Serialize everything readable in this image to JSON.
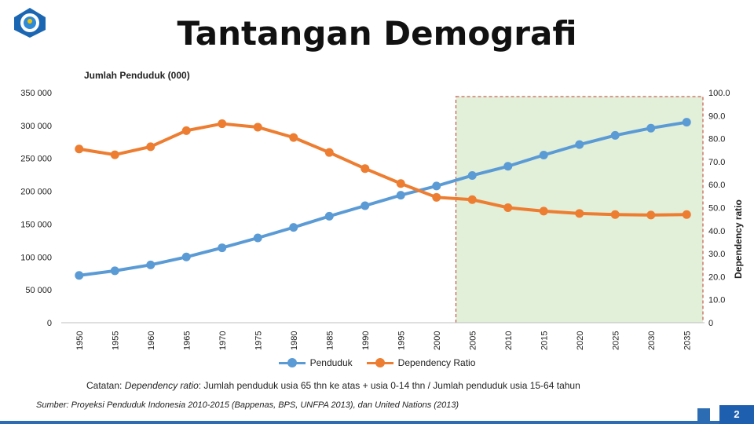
{
  "slide": {
    "title": "Tantangan Demografi",
    "subtitle": "Jumlah Penduduk (000)",
    "note_prefix": "Catatan: ",
    "note_term": "Dependency ratio",
    "note_text": ": Jumlah penduduk usia 65 thn ke atas + usia 0-14 thn / Jumlah penduduk usia 15-64 tahun",
    "source": "Sumber: Proyeksi Penduduk Indonesia 2010-2015 (Bappenas, BPS, UNFPA 2013), dan United Nations (2013)",
    "page_number": "2"
  },
  "colors": {
    "penduduk": "#5b9bd5",
    "dependency": "#ed7d31",
    "projection_fill": "#e2efd9",
    "projection_border": "#c0392b",
    "accent": "#2b6cb3"
  },
  "chart_data": {
    "type": "line",
    "title": "",
    "categories": [
      "1950",
      "1955",
      "1960",
      "1965",
      "1970",
      "1975",
      "1980",
      "1985",
      "1990",
      "1995",
      "2000",
      "2005",
      "2010",
      "2015",
      "2020",
      "2025",
      "2030",
      "2035"
    ],
    "y_left": {
      "min": 0,
      "max": 350000,
      "ticks": [
        "0",
        "50 000",
        "100 000",
        "150 000",
        "200 000",
        "250 000",
        "300 000",
        "350 000"
      ]
    },
    "y_right": {
      "label": "Dependency ratio",
      "min": 0,
      "max": 100,
      "ticks": [
        "0",
        "10.0",
        "20.0",
        "30.0",
        "40.0",
        "50.0",
        "60.0",
        "70.0",
        "80.0",
        "90.0",
        "100.0"
      ]
    },
    "highlight_range": {
      "from": "2005",
      "to": "2035"
    },
    "grid": false,
    "legend_position": "bottom",
    "series": [
      {
        "name": "Penduduk",
        "axis": "left",
        "values": [
          72000,
          79000,
          88000,
          100000,
          114000,
          129000,
          145000,
          162000,
          178000,
          194000,
          208000,
          224000,
          238000,
          255000,
          271000,
          285000,
          296000,
          305000
        ]
      },
      {
        "name": "Dependency Ratio",
        "axis": "right",
        "values": [
          75.5,
          73.0,
          76.5,
          83.5,
          86.5,
          85.0,
          80.5,
          74.0,
          67.0,
          60.5,
          54.5,
          53.5,
          50.0,
          48.5,
          47.5,
          47.0,
          46.8,
          47.0
        ]
      }
    ]
  }
}
